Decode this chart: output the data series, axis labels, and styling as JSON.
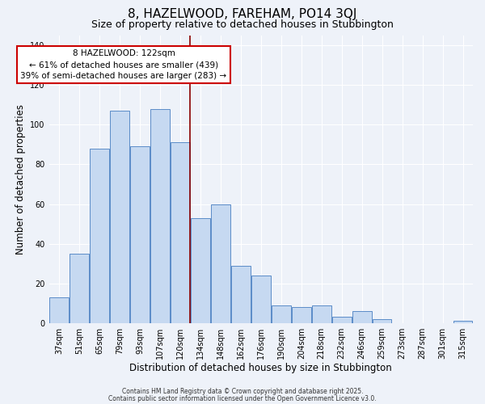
{
  "title": "8, HAZELWOOD, FAREHAM, PO14 3QJ",
  "subtitle": "Size of property relative to detached houses in Stubbington",
  "xlabel": "Distribution of detached houses by size in Stubbington",
  "ylabel": "Number of detached properties",
  "bar_labels": [
    "37sqm",
    "51sqm",
    "65sqm",
    "79sqm",
    "93sqm",
    "107sqm",
    "120sqm",
    "134sqm",
    "148sqm",
    "162sqm",
    "176sqm",
    "190sqm",
    "204sqm",
    "218sqm",
    "232sqm",
    "246sqm",
    "259sqm",
    "273sqm",
    "287sqm",
    "301sqm",
    "315sqm"
  ],
  "bar_values": [
    13,
    35,
    88,
    107,
    89,
    108,
    91,
    53,
    60,
    29,
    24,
    9,
    8,
    9,
    3,
    6,
    2,
    0,
    0,
    0,
    1
  ],
  "bar_color": "#c6d9f1",
  "bar_edge_color": "#5b8cc8",
  "vline_color": "#8b0000",
  "annotation_title": "8 HAZELWOOD: 122sqm",
  "annotation_line1": "← 61% of detached houses are smaller (439)",
  "annotation_line2": "39% of semi-detached houses are larger (283) →",
  "annotation_box_color": "#ffffff",
  "annotation_box_edge": "#cc0000",
  "ylim": [
    0,
    145
  ],
  "yticks": [
    0,
    20,
    40,
    60,
    80,
    100,
    120,
    140
  ],
  "footer1": "Contains HM Land Registry data © Crown copyright and database right 2025.",
  "footer2": "Contains public sector information licensed under the Open Government Licence v3.0.",
  "background_color": "#eef2f9",
  "grid_color": "#ffffff",
  "title_fontsize": 11,
  "subtitle_fontsize": 9,
  "axis_label_fontsize": 8.5,
  "tick_fontsize": 7,
  "annotation_fontsize": 7.5,
  "footer_fontsize": 5.5
}
